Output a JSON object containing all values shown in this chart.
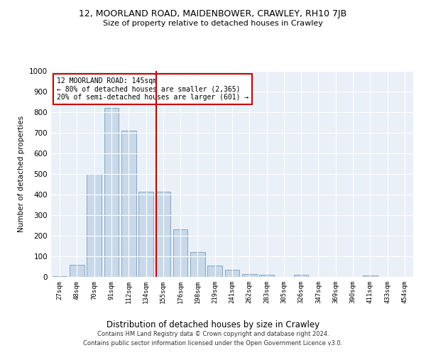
{
  "title": "12, MOORLAND ROAD, MAIDENBOWER, CRAWLEY, RH10 7JB",
  "subtitle": "Size of property relative to detached houses in Crawley",
  "xlabel": "Distribution of detached houses by size in Crawley",
  "ylabel": "Number of detached properties",
  "footer1": "Contains HM Land Registry data © Crown copyright and database right 2024.",
  "footer2": "Contains public sector information licensed under the Open Government Licence v3.0.",
  "annotation_line1": "12 MOORLAND ROAD: 145sqm",
  "annotation_line2": "← 80% of detached houses are smaller (2,365)",
  "annotation_line3": "20% of semi-detached houses are larger (601) →",
  "bar_color": "#c8d8e8",
  "bar_edge_color": "#6090b8",
  "redline_color": "#cc0000",
  "categories": [
    "27sqm",
    "48sqm",
    "70sqm",
    "91sqm",
    "112sqm",
    "134sqm",
    "155sqm",
    "176sqm",
    "198sqm",
    "219sqm",
    "241sqm",
    "262sqm",
    "283sqm",
    "305sqm",
    "326sqm",
    "347sqm",
    "369sqm",
    "390sqm",
    "411sqm",
    "433sqm",
    "454sqm"
  ],
  "values": [
    5,
    60,
    500,
    820,
    710,
    415,
    415,
    230,
    120,
    55,
    35,
    15,
    12,
    0,
    12,
    0,
    0,
    0,
    8,
    0,
    0
  ],
  "redline_index": 6,
  "ylim": [
    0,
    1000
  ],
  "yticks": [
    0,
    100,
    200,
    300,
    400,
    500,
    600,
    700,
    800,
    900,
    1000
  ],
  "plot_bg_color": "#eaf0f8",
  "annotation_box_color": "#ffffff",
  "annotation_box_edge": "#cc0000",
  "grid_color": "#ffffff"
}
